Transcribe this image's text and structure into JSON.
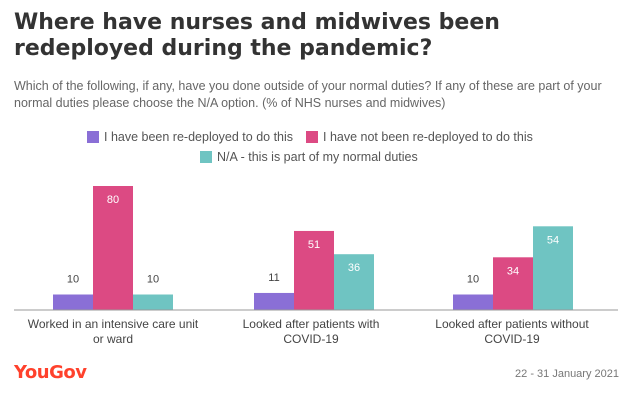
{
  "title": "Where have nurses and midwives been redeployed during the pandemic?",
  "subtitle": "Which of the following, if any, have you done outside of your normal duties? If any of these are part of your normal duties please choose the N/A option. (% of NHS nurses and midwives)",
  "brand": "YouGov",
  "date_range": "22 - 31 January 2021",
  "chart_data": {
    "type": "bar",
    "title": "Where have nurses and midwives been redeployed during the pandemic?",
    "categories": [
      "Worked in an intensive care unit or ward",
      "Looked after patients with COVID-19",
      "Looked after patients without COVID-19"
    ],
    "category_lines": [
      [
        "Worked in an intensive care unit",
        "or ward"
      ],
      [
        "Looked after patients with",
        "COVID-19"
      ],
      [
        "Looked after patients without",
        "COVID-19"
      ]
    ],
    "series": [
      {
        "name": "I have been re-deployed to do this",
        "color": "#8a6fd6",
        "values": [
          10,
          11,
          10
        ]
      },
      {
        "name": "I have not been re-deployed to do this",
        "color": "#dc4a83",
        "values": [
          80,
          51,
          34
        ]
      },
      {
        "name": "N/A - this is part of my normal duties",
        "color": "#6fc4c2",
        "values": [
          10,
          36,
          54
        ]
      }
    ],
    "ylim": [
      0,
      80
    ],
    "grid": false,
    "legend": "top-center"
  }
}
